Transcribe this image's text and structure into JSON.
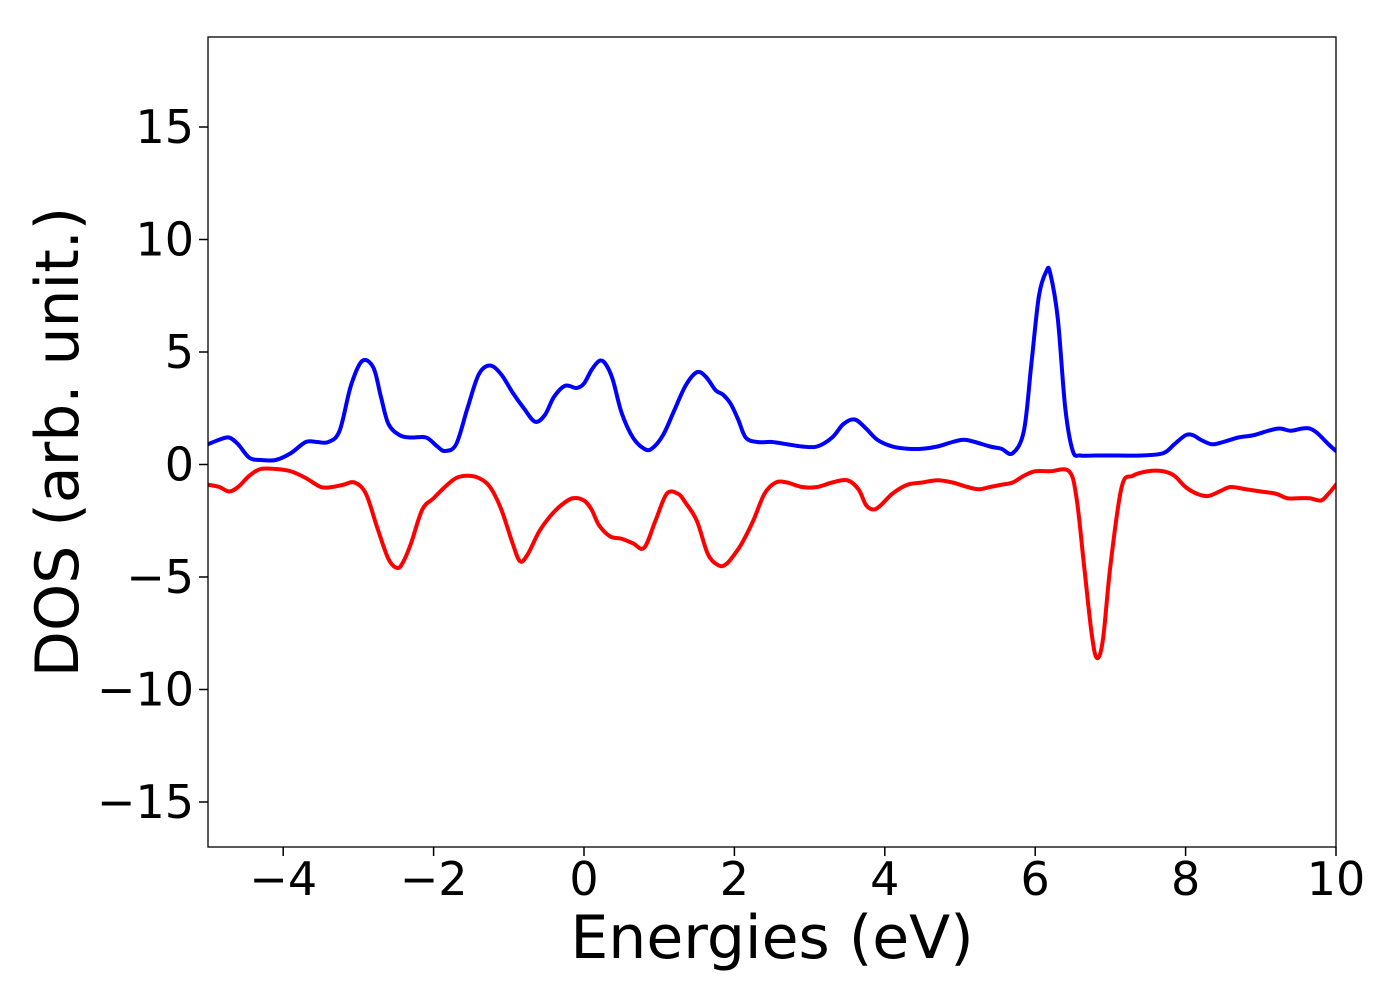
{
  "chart_data": {
    "type": "line",
    "title": "",
    "xlabel": "Energies (eV)",
    "ylabel": "DOS (arb. unit.)",
    "xlim": [
      -5,
      10
    ],
    "ylim": [
      -17,
      19
    ],
    "xticks": [
      -4,
      -2,
      0,
      2,
      4,
      6,
      8,
      10
    ],
    "yticks": [
      -15,
      -10,
      -5,
      0,
      5,
      10,
      15
    ],
    "xtick_labels": [
      "−4",
      "−2",
      "0",
      "2",
      "4",
      "6",
      "8",
      "10"
    ],
    "ytick_labels": [
      "−15",
      "−10",
      "−5",
      "0",
      "5",
      "10",
      "15"
    ],
    "grid": false,
    "legend": "none",
    "series": [
      {
        "color": "#0000ff",
        "x": [
          -5.0,
          -4.85,
          -4.72,
          -4.6,
          -4.45,
          -4.3,
          -4.1,
          -3.9,
          -3.7,
          -3.55,
          -3.4,
          -3.25,
          -3.1,
          -2.95,
          -2.8,
          -2.7,
          -2.6,
          -2.45,
          -2.3,
          -2.1,
          -1.95,
          -1.85,
          -1.7,
          -1.55,
          -1.4,
          -1.25,
          -1.1,
          -0.95,
          -0.8,
          -0.65,
          -0.52,
          -0.4,
          -0.25,
          -0.1,
          0.0,
          0.1,
          0.2,
          0.28,
          0.38,
          0.5,
          0.65,
          0.8,
          0.9,
          1.05,
          1.2,
          1.35,
          1.5,
          1.62,
          1.75,
          1.85,
          1.95,
          2.05,
          2.15,
          2.3,
          2.5,
          2.7,
          2.9,
          3.1,
          3.3,
          3.45,
          3.6,
          3.75,
          3.9,
          4.1,
          4.3,
          4.5,
          4.7,
          4.9,
          5.05,
          5.2,
          5.4,
          5.55,
          5.7,
          5.85,
          5.95,
          6.05,
          6.15,
          6.2,
          6.3,
          6.4,
          6.5,
          6.6,
          6.8,
          7.1,
          7.4,
          7.7,
          7.85,
          8.0,
          8.1,
          8.2,
          8.35,
          8.5,
          8.7,
          8.9,
          9.1,
          9.25,
          9.4,
          9.55,
          9.65,
          9.75,
          9.9,
          10.0
        ],
        "y": [
          0.9,
          1.1,
          1.2,
          0.9,
          0.3,
          0.2,
          0.2,
          0.5,
          1.0,
          1.0,
          1.0,
          1.5,
          3.5,
          4.6,
          4.3,
          3.0,
          1.8,
          1.3,
          1.2,
          1.2,
          0.8,
          0.6,
          0.9,
          2.5,
          4.0,
          4.4,
          4.0,
          3.2,
          2.5,
          1.9,
          2.2,
          3.0,
          3.5,
          3.4,
          3.6,
          4.2,
          4.6,
          4.5,
          3.8,
          2.3,
          1.2,
          0.7,
          0.7,
          1.3,
          2.4,
          3.5,
          4.1,
          3.9,
          3.3,
          3.1,
          2.7,
          2.0,
          1.2,
          1.0,
          1.0,
          0.9,
          0.8,
          0.8,
          1.2,
          1.8,
          2.0,
          1.6,
          1.1,
          0.8,
          0.7,
          0.7,
          0.8,
          1.0,
          1.1,
          1.0,
          0.8,
          0.7,
          0.5,
          1.5,
          4.5,
          7.5,
          8.6,
          8.5,
          6.5,
          2.5,
          0.6,
          0.4,
          0.4,
          0.4,
          0.4,
          0.5,
          0.9,
          1.3,
          1.3,
          1.1,
          0.9,
          1.0,
          1.2,
          1.3,
          1.5,
          1.6,
          1.5,
          1.6,
          1.6,
          1.4,
          0.9,
          0.6
        ]
      },
      {
        "color": "#ff0000",
        "x": [
          -5.0,
          -4.85,
          -4.72,
          -4.6,
          -4.45,
          -4.3,
          -4.1,
          -3.9,
          -3.7,
          -3.5,
          -3.35,
          -3.2,
          -3.05,
          -2.9,
          -2.75,
          -2.6,
          -2.48,
          -2.4,
          -2.3,
          -2.15,
          -2.0,
          -1.85,
          -1.7,
          -1.55,
          -1.4,
          -1.25,
          -1.1,
          -0.95,
          -0.85,
          -0.75,
          -0.6,
          -0.45,
          -0.3,
          -0.15,
          0.0,
          0.1,
          0.2,
          0.35,
          0.5,
          0.65,
          0.8,
          0.95,
          1.1,
          1.25,
          1.35,
          1.5,
          1.65,
          1.8,
          1.9,
          2.0,
          2.1,
          2.25,
          2.4,
          2.55,
          2.7,
          2.9,
          3.1,
          3.3,
          3.5,
          3.65,
          3.75,
          3.85,
          3.95,
          4.1,
          4.3,
          4.5,
          4.7,
          4.9,
          5.1,
          5.25,
          5.4,
          5.55,
          5.7,
          5.85,
          6.0,
          6.2,
          6.45,
          6.55,
          6.65,
          6.75,
          6.82,
          6.9,
          7.0,
          7.15,
          7.3,
          7.5,
          7.7,
          7.85,
          8.0,
          8.15,
          8.3,
          8.45,
          8.6,
          8.8,
          9.0,
          9.2,
          9.35,
          9.5,
          9.65,
          9.8,
          9.9,
          10.0
        ],
        "y": [
          -0.9,
          -1.0,
          -1.2,
          -1.0,
          -0.5,
          -0.2,
          -0.2,
          -0.3,
          -0.6,
          -1.0,
          -1.0,
          -0.9,
          -0.8,
          -1.3,
          -2.8,
          -4.2,
          -4.6,
          -4.3,
          -3.5,
          -2.0,
          -1.5,
          -1.0,
          -0.6,
          -0.5,
          -0.6,
          -1.0,
          -2.0,
          -3.5,
          -4.3,
          -4.0,
          -3.0,
          -2.3,
          -1.8,
          -1.5,
          -1.6,
          -2.0,
          -2.7,
          -3.2,
          -3.3,
          -3.5,
          -3.7,
          -2.5,
          -1.3,
          -1.3,
          -1.7,
          -2.5,
          -4.0,
          -4.5,
          -4.4,
          -4.0,
          -3.5,
          -2.5,
          -1.3,
          -0.8,
          -0.8,
          -1.0,
          -1.0,
          -0.8,
          -0.7,
          -1.1,
          -1.8,
          -2.0,
          -1.8,
          -1.3,
          -0.9,
          -0.8,
          -0.7,
          -0.8,
          -1.0,
          -1.1,
          -1.0,
          -0.9,
          -0.8,
          -0.5,
          -0.3,
          -0.3,
          -0.3,
          -1.5,
          -4.5,
          -7.5,
          -8.6,
          -7.8,
          -4.5,
          -1.0,
          -0.5,
          -0.3,
          -0.3,
          -0.5,
          -1.0,
          -1.3,
          -1.4,
          -1.2,
          -1.0,
          -1.1,
          -1.2,
          -1.3,
          -1.5,
          -1.5,
          -1.5,
          -1.6,
          -1.3,
          -0.9
        ]
      }
    ]
  }
}
